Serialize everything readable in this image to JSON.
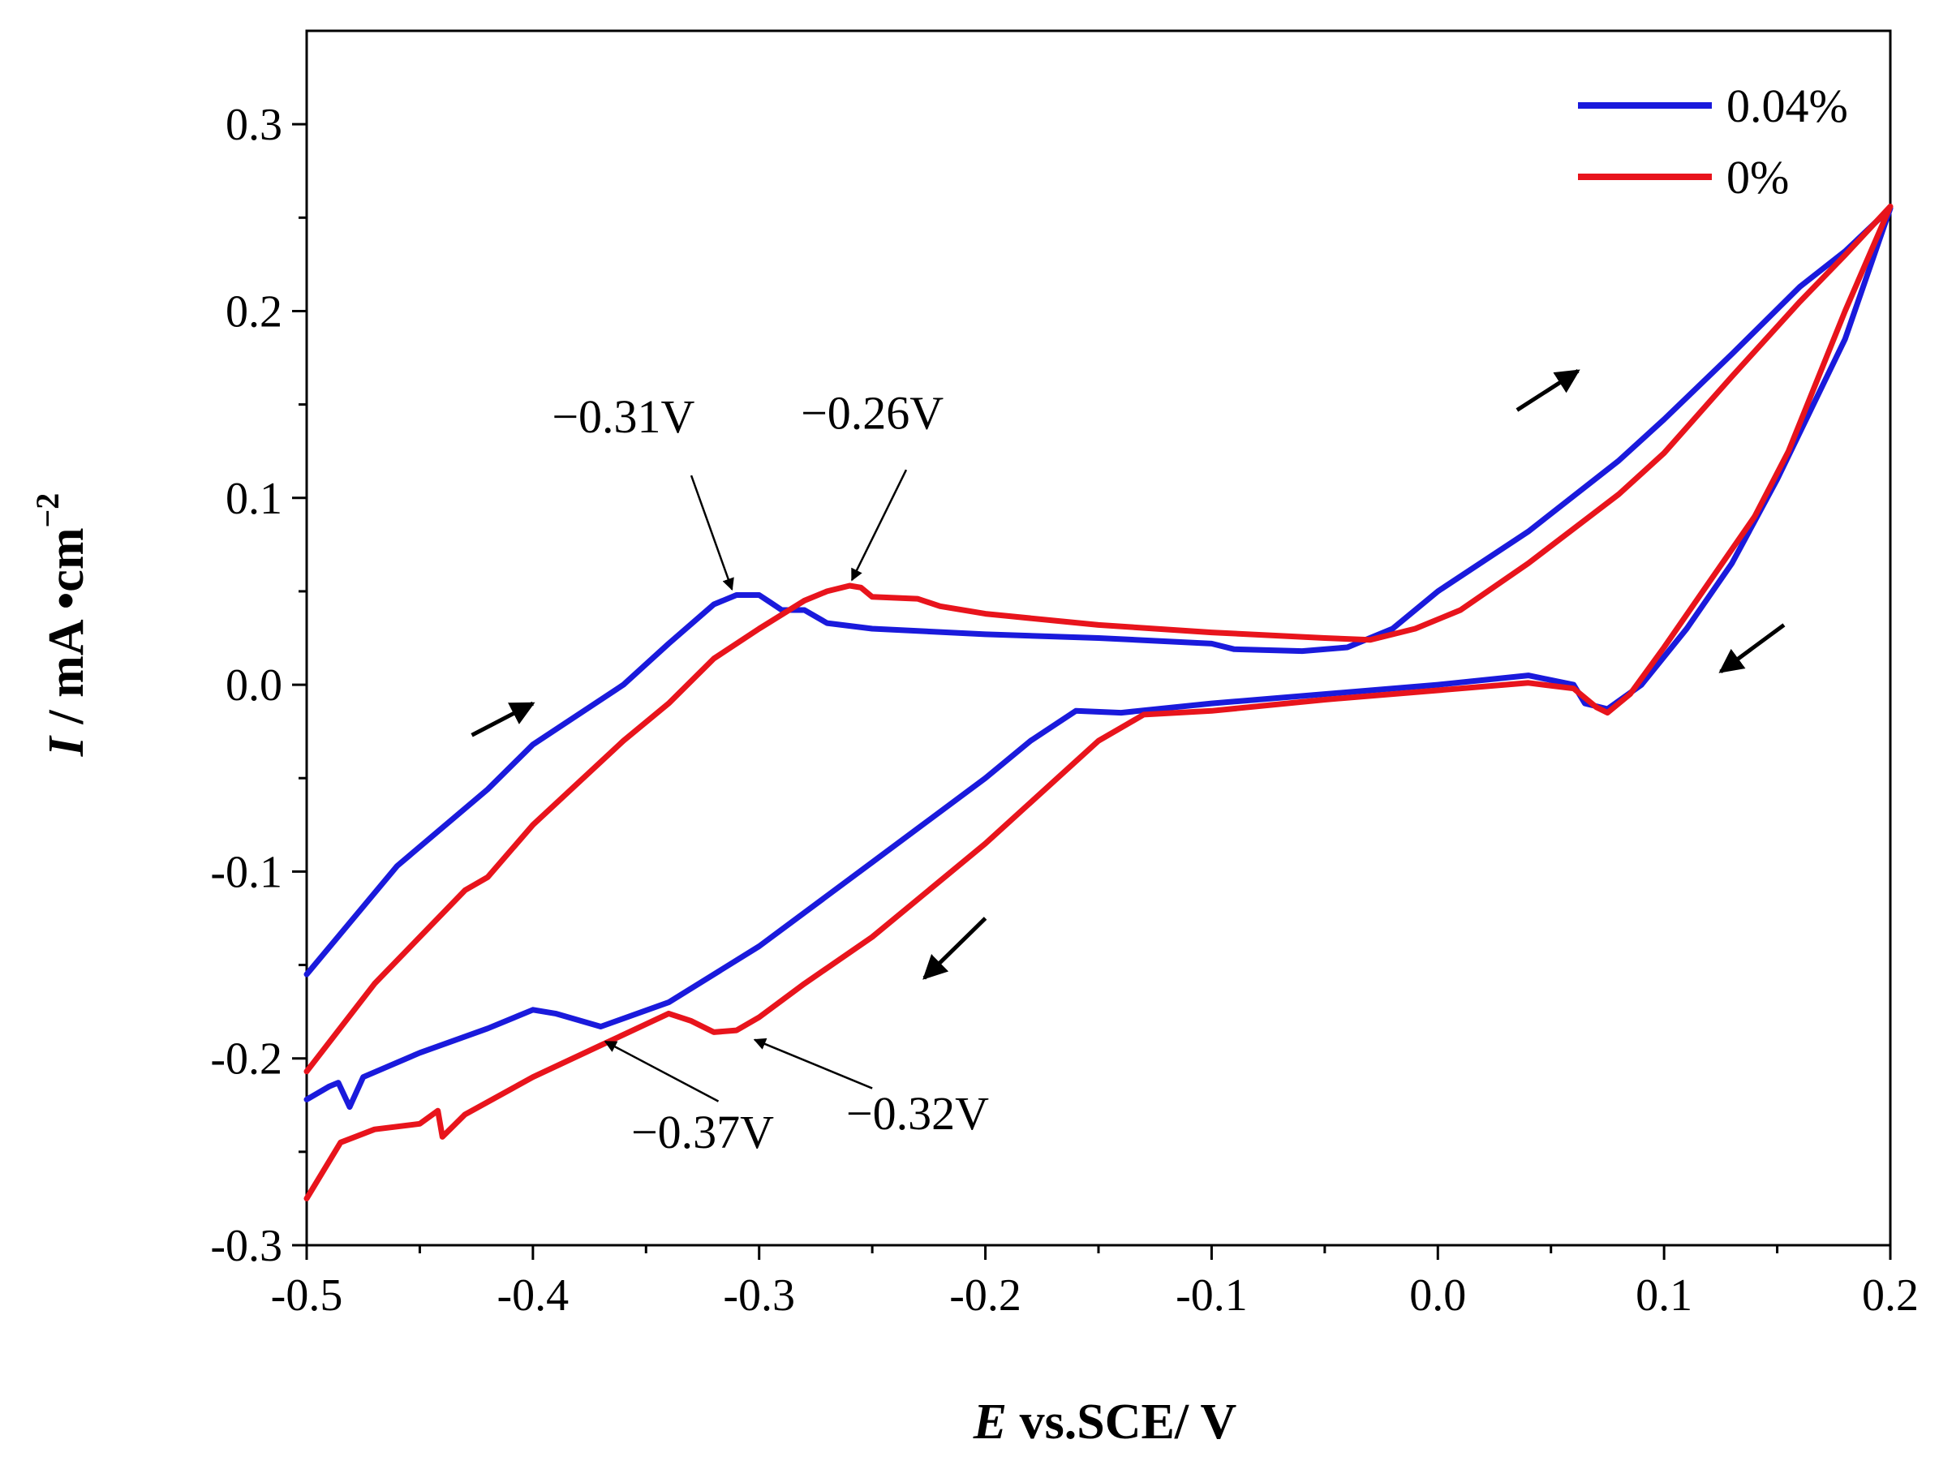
{
  "chart_data": {
    "type": "line",
    "title": "",
    "xlabel": {
      "symbol": "E",
      "text": " vs.SCE/ V"
    },
    "ylabel": {
      "symbol": "I",
      "unit": " / mA •cm",
      "exponent": "−2"
    },
    "xlim": [
      -0.5,
      0.2
    ],
    "ylim": [
      -0.3,
      0.35
    ],
    "x_ticks": [
      -0.5,
      -0.4,
      -0.3,
      -0.2,
      -0.1,
      0.0,
      0.1,
      0.2
    ],
    "x_tick_labels": [
      "-0.5",
      "-0.4",
      "-0.3",
      "-0.2",
      "-0.1",
      "0.0",
      "0.1",
      "0.2"
    ],
    "y_ticks": [
      -0.3,
      -0.2,
      -0.1,
      0.0,
      0.1,
      0.2,
      0.3
    ],
    "y_tick_labels": [
      "-0.3",
      "-0.2",
      "-0.1",
      "0.0",
      "0.1",
      "0.2",
      "0.3"
    ],
    "grid": false,
    "legend_position": "top-right",
    "series": [
      {
        "name": "0.04%",
        "color": "#1a1adc",
        "points": [
          [
            -0.5,
            -0.155
          ],
          [
            -0.46,
            -0.097
          ],
          [
            -0.42,
            -0.056
          ],
          [
            -0.4,
            -0.032
          ],
          [
            -0.36,
            0.0
          ],
          [
            -0.34,
            0.022
          ],
          [
            -0.32,
            0.043
          ],
          [
            -0.31,
            0.048
          ],
          [
            -0.3,
            0.048
          ],
          [
            -0.295,
            0.044
          ],
          [
            -0.29,
            0.04
          ],
          [
            -0.28,
            0.04
          ],
          [
            -0.27,
            0.033
          ],
          [
            -0.25,
            0.03
          ],
          [
            -0.2,
            0.027
          ],
          [
            -0.15,
            0.025
          ],
          [
            -0.1,
            0.022
          ],
          [
            -0.09,
            0.019
          ],
          [
            -0.06,
            0.018
          ],
          [
            -0.04,
            0.02
          ],
          [
            -0.02,
            0.03
          ],
          [
            0.0,
            0.05
          ],
          [
            0.04,
            0.082
          ],
          [
            0.08,
            0.12
          ],
          [
            0.1,
            0.142
          ],
          [
            0.13,
            0.177
          ],
          [
            0.16,
            0.213
          ],
          [
            0.18,
            0.232
          ],
          [
            0.2,
            0.255
          ],
          [
            0.18,
            0.185
          ],
          [
            0.15,
            0.11
          ],
          [
            0.13,
            0.065
          ],
          [
            0.11,
            0.03
          ],
          [
            0.09,
            0.0
          ],
          [
            0.075,
            -0.013
          ],
          [
            0.065,
            -0.01
          ],
          [
            0.06,
            0.0
          ],
          [
            0.04,
            0.005
          ],
          [
            0.0,
            0.0
          ],
          [
            -0.05,
            -0.005
          ],
          [
            -0.1,
            -0.01
          ],
          [
            -0.14,
            -0.015
          ],
          [
            -0.16,
            -0.014
          ],
          [
            -0.18,
            -0.03
          ],
          [
            -0.2,
            -0.05
          ],
          [
            -0.25,
            -0.095
          ],
          [
            -0.3,
            -0.14
          ],
          [
            -0.34,
            -0.17
          ],
          [
            -0.37,
            -0.183
          ],
          [
            -0.39,
            -0.176
          ],
          [
            -0.4,
            -0.174
          ],
          [
            -0.42,
            -0.184
          ],
          [
            -0.45,
            -0.197
          ],
          [
            -0.475,
            -0.21
          ],
          [
            -0.481,
            -0.226
          ],
          [
            -0.486,
            -0.213
          ],
          [
            -0.49,
            -0.215
          ],
          [
            -0.5,
            -0.222
          ]
        ]
      },
      {
        "name": "0%",
        "color": "#e8141c",
        "points": [
          [
            -0.5,
            -0.207
          ],
          [
            -0.47,
            -0.16
          ],
          [
            -0.43,
            -0.11
          ],
          [
            -0.42,
            -0.103
          ],
          [
            -0.4,
            -0.075
          ],
          [
            -0.36,
            -0.03
          ],
          [
            -0.34,
            -0.01
          ],
          [
            -0.32,
            0.014
          ],
          [
            -0.3,
            0.03
          ],
          [
            -0.28,
            0.045
          ],
          [
            -0.27,
            0.05
          ],
          [
            -0.26,
            0.053
          ],
          [
            -0.255,
            0.052
          ],
          [
            -0.25,
            0.047
          ],
          [
            -0.23,
            0.046
          ],
          [
            -0.22,
            0.042
          ],
          [
            -0.2,
            0.038
          ],
          [
            -0.15,
            0.032
          ],
          [
            -0.1,
            0.028
          ],
          [
            -0.05,
            0.025
          ],
          [
            -0.03,
            0.024
          ],
          [
            -0.01,
            0.03
          ],
          [
            0.01,
            0.04
          ],
          [
            0.04,
            0.065
          ],
          [
            0.08,
            0.102
          ],
          [
            0.1,
            0.124
          ],
          [
            0.13,
            0.165
          ],
          [
            0.16,
            0.205
          ],
          [
            0.18,
            0.23
          ],
          [
            0.2,
            0.256
          ],
          [
            0.18,
            0.2
          ],
          [
            0.165,
            0.155
          ],
          [
            0.155,
            0.125
          ],
          [
            0.14,
            0.09
          ],
          [
            0.12,
            0.055
          ],
          [
            0.1,
            0.02
          ],
          [
            0.085,
            -0.005
          ],
          [
            0.075,
            -0.015
          ],
          [
            0.07,
            -0.012
          ],
          [
            0.06,
            -0.002
          ],
          [
            0.04,
            0.001
          ],
          [
            0.0,
            -0.003
          ],
          [
            -0.05,
            -0.008
          ],
          [
            -0.1,
            -0.014
          ],
          [
            -0.13,
            -0.016
          ],
          [
            -0.15,
            -0.03
          ],
          [
            -0.2,
            -0.085
          ],
          [
            -0.25,
            -0.135
          ],
          [
            -0.28,
            -0.16
          ],
          [
            -0.3,
            -0.178
          ],
          [
            -0.31,
            -0.185
          ],
          [
            -0.32,
            -0.186
          ],
          [
            -0.33,
            -0.18
          ],
          [
            -0.34,
            -0.176
          ],
          [
            -0.37,
            -0.193
          ],
          [
            -0.4,
            -0.21
          ],
          [
            -0.43,
            -0.23
          ],
          [
            -0.44,
            -0.242
          ],
          [
            -0.442,
            -0.228
          ],
          [
            -0.45,
            -0.235
          ],
          [
            -0.47,
            -0.238
          ],
          [
            -0.485,
            -0.245
          ],
          [
            -0.5,
            -0.275
          ]
        ]
      }
    ],
    "annotations": [
      {
        "text": "−0.31V",
        "label_at": [
          -0.36,
          0.135
        ],
        "arrow_from": [
          -0.33,
          0.112
        ],
        "arrow_to": [
          -0.312,
          0.051
        ]
      },
      {
        "text": "−0.26V",
        "label_at": [
          -0.25,
          0.137
        ],
        "arrow_from": [
          -0.235,
          0.115
        ],
        "arrow_to": [
          -0.259,
          0.056
        ]
      },
      {
        "text": "−0.37V",
        "label_at": [
          -0.325,
          -0.248
        ],
        "arrow_from": [
          -0.318,
          -0.223
        ],
        "arrow_to": [
          -0.368,
          -0.191
        ]
      },
      {
        "text": "−0.32V",
        "label_at": [
          -0.23,
          -0.238
        ],
        "arrow_from": [
          -0.25,
          -0.216
        ],
        "arrow_to": [
          -0.302,
          -0.19
        ]
      }
    ],
    "direction_arrows": [
      {
        "from": [
          -0.427,
          -0.027
        ],
        "to": [
          -0.4,
          -0.01
        ]
      },
      {
        "from": [
          0.035,
          0.147
        ],
        "to": [
          0.062,
          0.168
        ]
      },
      {
        "from": [
          0.153,
          0.032
        ],
        "to": [
          0.125,
          0.007
        ]
      },
      {
        "from": [
          -0.2,
          -0.125
        ],
        "to": [
          -0.227,
          -0.157
        ]
      }
    ]
  }
}
